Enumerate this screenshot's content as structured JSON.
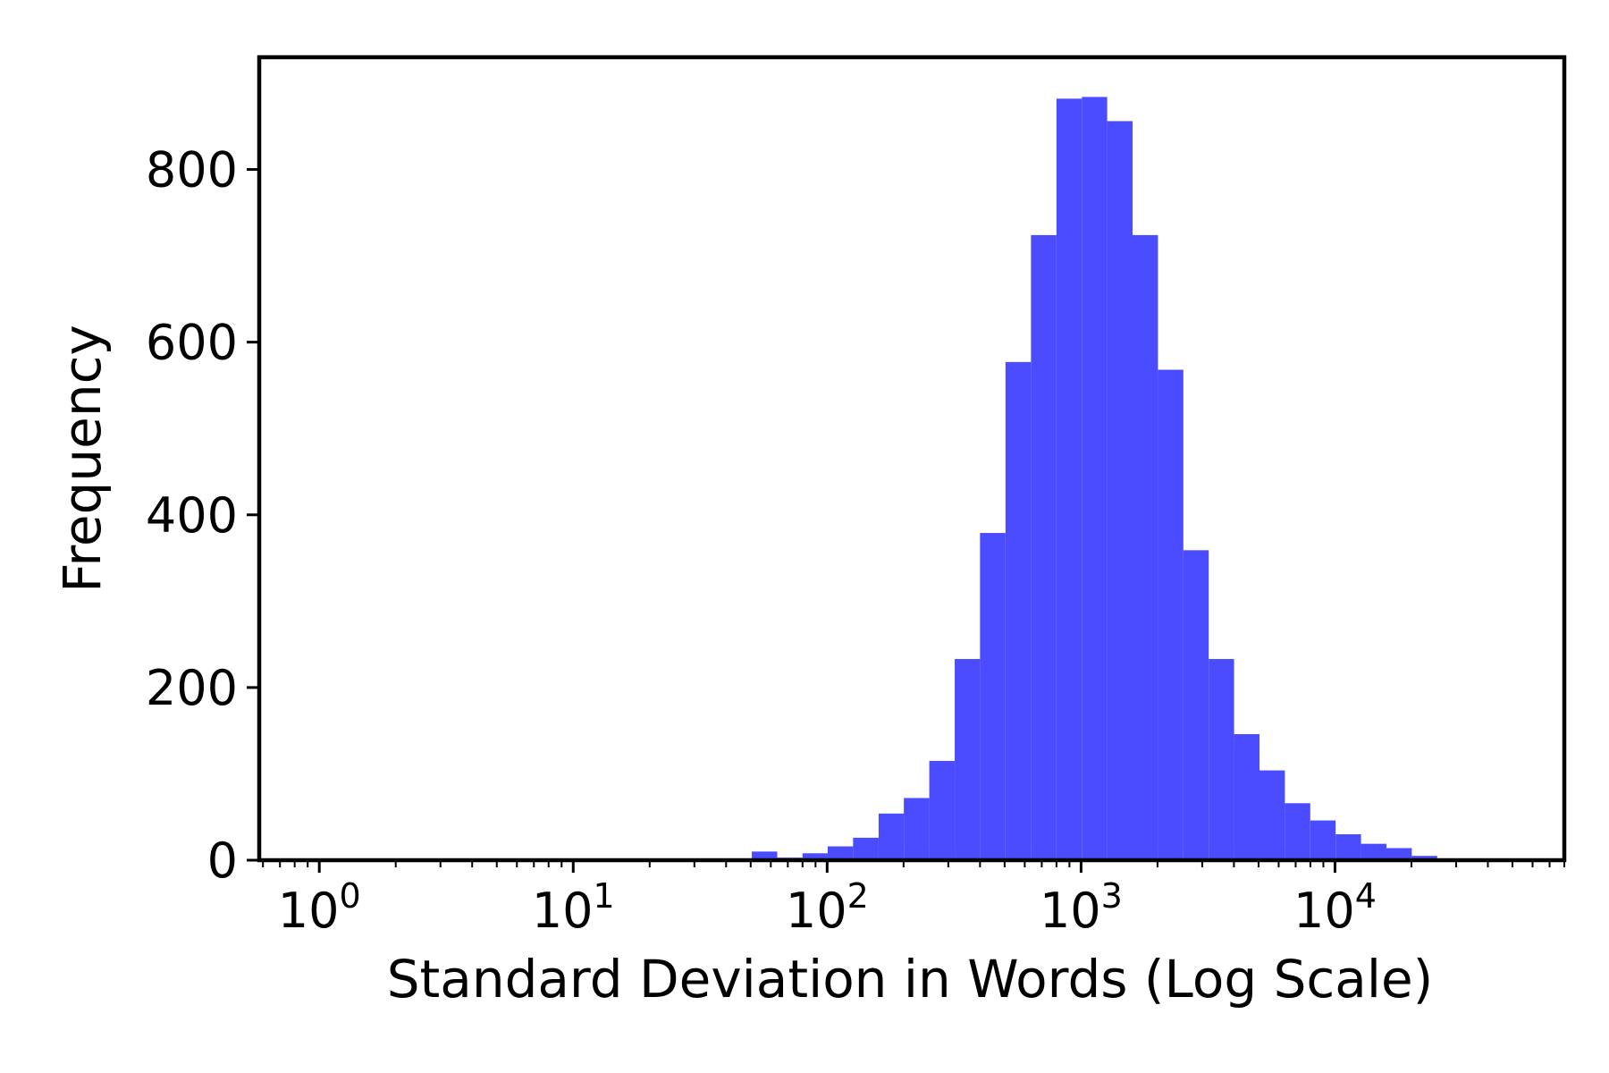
{
  "chart_data": {
    "type": "bar",
    "xscale": "log",
    "xlim": [
      0.58,
      80000
    ],
    "ylim": [
      0,
      930
    ],
    "xlabel": "Standard Deviation in Words (Log Scale)",
    "ylabel": "Frequency",
    "x_ticks": [
      {
        "base": "10",
        "exp": "0",
        "value": 1
      },
      {
        "base": "10",
        "exp": "1",
        "value": 10
      },
      {
        "base": "10",
        "exp": "2",
        "value": 100
      },
      {
        "base": "10",
        "exp": "3",
        "value": 1000
      },
      {
        "base": "10",
        "exp": "4",
        "value": 10000
      }
    ],
    "y_ticks": [
      "0",
      "200",
      "400",
      "600",
      "800"
    ],
    "bar_color": "#4b4bff",
    "grid": false,
    "bins": [
      {
        "x0": 50.5,
        "x1": 63.6,
        "value": 10
      },
      {
        "x0": 63.6,
        "x1": 80.0,
        "value": 3
      },
      {
        "x0": 80.0,
        "x1": 100.5,
        "value": 8
      },
      {
        "x0": 100.5,
        "x1": 126.5,
        "value": 16
      },
      {
        "x0": 126.5,
        "x1": 159.5,
        "value": 26
      },
      {
        "x0": 159.5,
        "x1": 200.5,
        "value": 54
      },
      {
        "x0": 200.5,
        "x1": 252.5,
        "value": 72
      },
      {
        "x0": 252.5,
        "x1": 318,
        "value": 115
      },
      {
        "x0": 318,
        "x1": 400,
        "value": 233
      },
      {
        "x0": 400,
        "x1": 504,
        "value": 379
      },
      {
        "x0": 504,
        "x1": 635,
        "value": 577
      },
      {
        "x0": 635,
        "x1": 800,
        "value": 724
      },
      {
        "x0": 800,
        "x1": 1007,
        "value": 882
      },
      {
        "x0": 1007,
        "x1": 1267,
        "value": 884
      },
      {
        "x0": 1267,
        "x1": 1595,
        "value": 856
      },
      {
        "x0": 1595,
        "x1": 2008,
        "value": 724
      },
      {
        "x0": 2008,
        "x1": 2528,
        "value": 568
      },
      {
        "x0": 2528,
        "x1": 3182,
        "value": 359
      },
      {
        "x0": 3182,
        "x1": 4005,
        "value": 233
      },
      {
        "x0": 4005,
        "x1": 5042,
        "value": 146
      },
      {
        "x0": 5042,
        "x1": 6347,
        "value": 104
      },
      {
        "x0": 6347,
        "x1": 7990,
        "value": 66
      },
      {
        "x0": 7990,
        "x1": 10058,
        "value": 46
      },
      {
        "x0": 10058,
        "x1": 12662,
        "value": 30
      },
      {
        "x0": 12662,
        "x1": 15940,
        "value": 19
      },
      {
        "x0": 15940,
        "x1": 20066,
        "value": 14
      },
      {
        "x0": 20066,
        "x1": 25260,
        "value": 5
      },
      {
        "x0": 25260,
        "x1": 31800,
        "value": 2
      },
      {
        "x0": 31800,
        "x1": 40030,
        "value": 1
      }
    ]
  }
}
